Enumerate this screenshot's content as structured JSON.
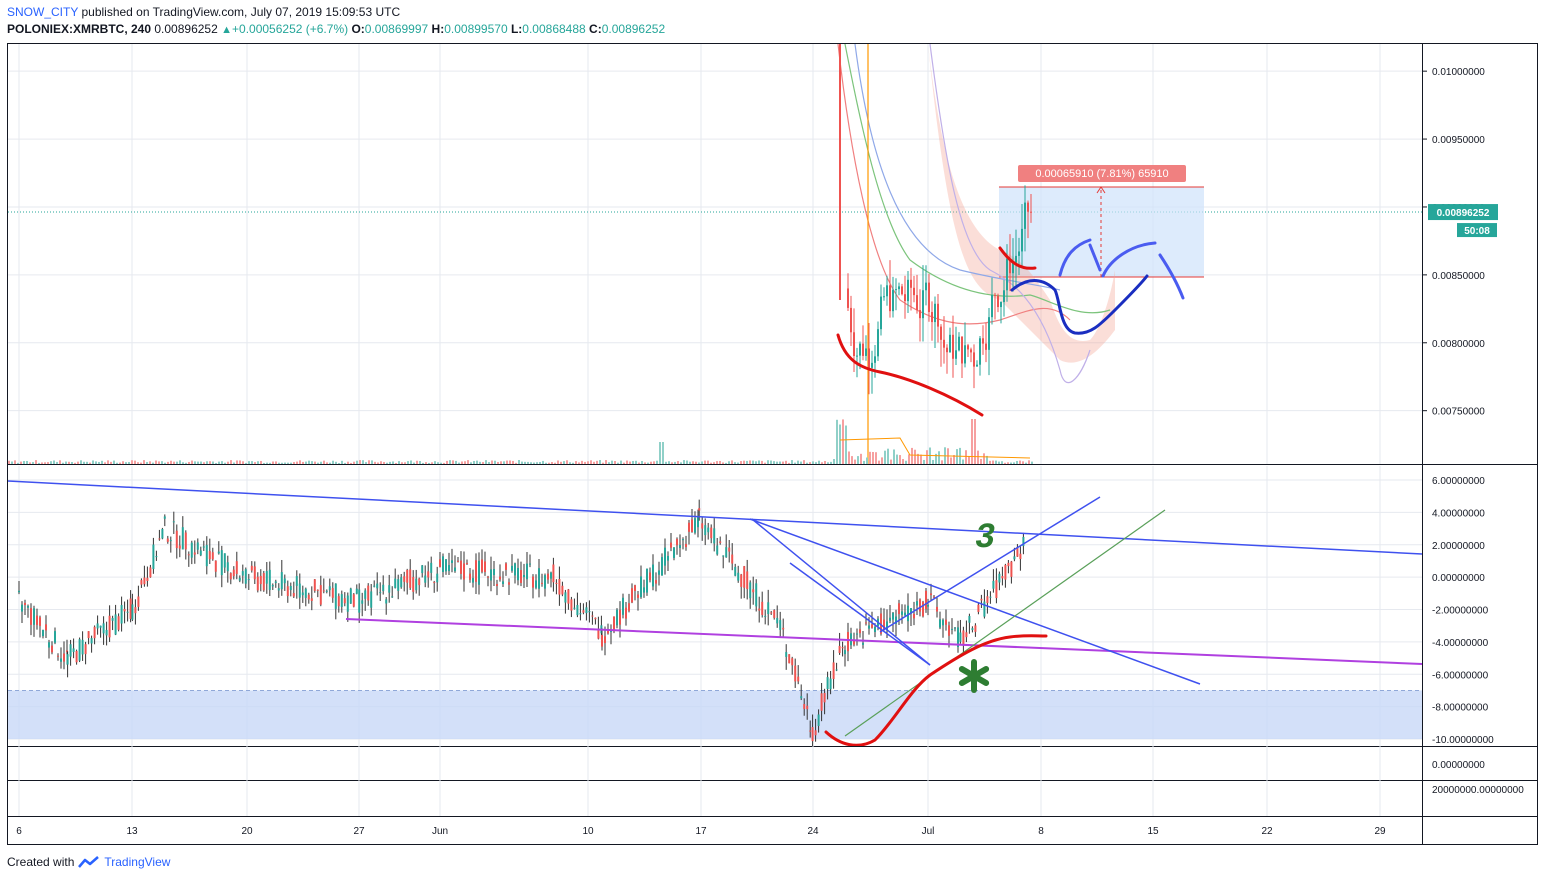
{
  "header": {
    "author": "SNOW_CITY",
    "published": "published on TradingView.com, July 07, 2019 15:09:53 UTC",
    "symbol": "POLONIEX:XMRBTC, 240",
    "last": "0.00896252",
    "change": "+0.00056252 (+6.7%)",
    "o_label": "O:",
    "o_val": "0.00869997",
    "h_label": "H:",
    "h_val": "0.00899570",
    "l_label": "L:",
    "l_val": "0.00868488",
    "c_label": "C:",
    "c_val": "0.00896252"
  },
  "footer": {
    "created": "Created with",
    "brand": "TradingView"
  },
  "colors": {
    "up": "#26a69a",
    "down": "#ef5350",
    "grid": "#e6e9ef",
    "blue_line": "#3f51ef",
    "purple_line": "#b040e0",
    "red_curve": "#e01010",
    "green_mark": "#2e7d32"
  },
  "chart_data": [
    {
      "type": "candlestick",
      "title": "",
      "y_ticks": [
        "0.01000000",
        "0.00950000",
        "0.00900000",
        "0.00850000",
        "0.00800000",
        "0.00750000"
      ],
      "ylim": [
        0.0071,
        0.0102
      ],
      "last_price_label": "0.00896252",
      "countdown_label": "50:08",
      "measure_label": "0.00065910 (7.81%) 65910",
      "candles_approx": [
        {
          "x": "Jun 26",
          "low": 0.0076,
          "high": 0.0102
        },
        {
          "x": "Jun 27",
          "low": 0.0078,
          "high": 0.0087
        },
        {
          "x": "Jul 1",
          "low": 0.0081,
          "high": 0.0087
        },
        {
          "x": "Jul 3",
          "low": 0.0075,
          "high": 0.0083
        },
        {
          "x": "Jul 7",
          "low": 0.0087,
          "high": 0.009
        }
      ]
    },
    {
      "type": "line",
      "title": "",
      "y_ticks": [
        "6.00000000",
        "4.00000000",
        "2.00000000",
        "0.00000000",
        "-2.00000000",
        "-4.00000000",
        "-6.00000000",
        "-8.00000000",
        "-10.00000000"
      ],
      "ylim": [
        -10,
        6
      ],
      "zone": [
        -10,
        -7
      ],
      "annotation": "3",
      "points": [
        {
          "x": "May 6",
          "y": -1.5
        },
        {
          "x": "May 9",
          "y": -5
        },
        {
          "x": "May 13",
          "y": -2
        },
        {
          "x": "May 15",
          "y": 3
        },
        {
          "x": "May 20",
          "y": 0
        },
        {
          "x": "May 27",
          "y": -1.5
        },
        {
          "x": "Jun 3",
          "y": 0.5
        },
        {
          "x": "Jun 10",
          "y": 0
        },
        {
          "x": "Jun 13",
          "y": -3.5
        },
        {
          "x": "Jun 19",
          "y": 3.5
        },
        {
          "x": "Jun 24",
          "y": -3
        },
        {
          "x": "Jun 26",
          "y": -9.5
        },
        {
          "x": "Jun 28",
          "y": -4
        },
        {
          "x": "Jul 1",
          "y": -1.5
        },
        {
          "x": "Jul 3",
          "y": -4
        },
        {
          "x": "Jul 7",
          "y": 2
        }
      ]
    },
    {
      "type": "line",
      "title": "",
      "y_ticks": [
        "0.00000000",
        "20000000.00000000"
      ]
    }
  ],
  "x_axis": {
    "labels": [
      "6",
      "13",
      "20",
      "27",
      "Jun",
      "10",
      "17",
      "24",
      "Jul",
      "8",
      "15",
      "22",
      "29"
    ]
  }
}
